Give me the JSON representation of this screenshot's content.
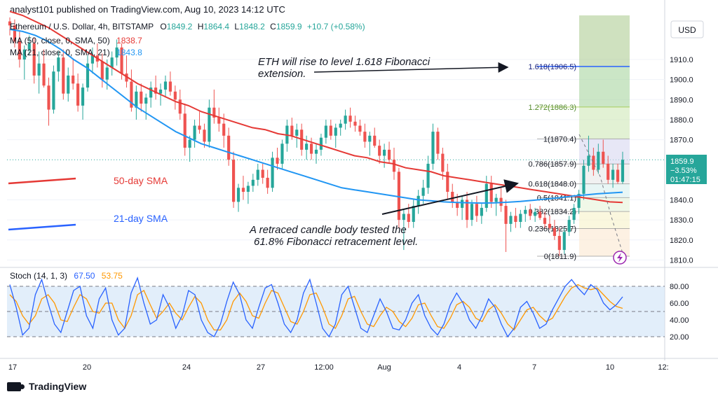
{
  "byline": "analyst101 published on TradingView.com, Aug 10, 2023 14:12 UTC",
  "brand": "TradingView",
  "colors": {
    "up": "#26a69a",
    "down": "#ef5350",
    "ma50": "#e53935",
    "ma21": "#2196f3",
    "stoch_k": "#2962ff",
    "stoch_d": "#ff9800",
    "stoch_band": "#cfe2f7",
    "fib_line": "#2962ff",
    "fib_1272": "#9bc53d"
  },
  "legend": {
    "symbol": "Ethereum / U.S. Dollar, 4h, BITSTAMP",
    "o_label": "O",
    "o": "1849.2",
    "h_label": "H",
    "h": "1864.4",
    "l_label": "L",
    "l": "1848.2",
    "c_label": "C",
    "c": "1859.9",
    "change": "+10.7 (+0.58%)",
    "ma50_label": "MA (50, close, 0, SMA, 50)",
    "ma50_value": "1838.7",
    "ma21_label": "MA (21, close, 0, SMA, 21)",
    "ma21_value": "1843.8"
  },
  "currency_button": "USD",
  "price_tag": {
    "price": "1859.9",
    "change": "−3.53%",
    "countdown": "01:47:15"
  },
  "annotations": {
    "top": [
      "ETH will rise to level 1.618 Fibonacci",
      "extension."
    ],
    "bottom": [
      "A retraced candle body tested the",
      "61.8% Fibonacci retracement level."
    ],
    "sma50": "50-day SMA",
    "sma21": "21-day SMA"
  },
  "stoch": {
    "label": "Stoch (14, 1, 3)",
    "k": "67.50",
    "d": "53.75"
  },
  "chart_data": {
    "type": "candlestick",
    "y_range": [
      1807,
      1932
    ],
    "y_ticks": [
      "1910.0",
      "1900.0",
      "1890.0",
      "1880.0",
      "1870.0",
      "1840.0",
      "1830.0",
      "1820.0",
      "1810.0"
    ],
    "x_ticks": [
      "17",
      "20",
      "24",
      "27",
      "12:00",
      "Aug",
      "4",
      "7",
      "10",
      "12:"
    ],
    "fib_levels": [
      {
        "ratio": "1.618",
        "price": 1906.5,
        "label": "1.618(1906.5)"
      },
      {
        "ratio": "1.272",
        "price": 1886.3,
        "label": "1.272(1886.3)"
      },
      {
        "ratio": "1",
        "price": 1870.4,
        "label": "1(1870.4)"
      },
      {
        "ratio": "0.786",
        "price": 1857.9,
        "label": "0.786(1857.9)"
      },
      {
        "ratio": "0.618",
        "price": 1848.0,
        "label": "0.618(1848.0)"
      },
      {
        "ratio": "0.5",
        "price": 1841.1,
        "label": "0.5(1841.1)"
      },
      {
        "ratio": "0.382",
        "price": 1834.2,
        "label": "0.382(1834.2)"
      },
      {
        "ratio": "0.236",
        "price": 1825.7,
        "label": "0.236(1825.7)"
      },
      {
        "ratio": "0",
        "price": 1811.9,
        "label": "0(1811.9)"
      }
    ],
    "candles": [
      [
        1929,
        1931,
        1922,
        1927
      ],
      [
        1927,
        1930,
        1916,
        1919
      ],
      [
        1919,
        1924,
        1906,
        1910
      ],
      [
        1910,
        1917,
        1900,
        1915
      ],
      [
        1915,
        1922,
        1912,
        1918
      ],
      [
        1918,
        1921,
        1898,
        1902
      ],
      [
        1902,
        1914,
        1893,
        1908
      ],
      [
        1908,
        1915,
        1896,
        1897
      ],
      [
        1897,
        1901,
        1877,
        1885
      ],
      [
        1885,
        1907,
        1883,
        1904
      ],
      [
        1904,
        1914,
        1899,
        1911
      ],
      [
        1911,
        1915,
        1890,
        1893
      ],
      [
        1893,
        1906,
        1889,
        1902
      ],
      [
        1902,
        1910,
        1895,
        1898
      ],
      [
        1898,
        1903,
        1884,
        1887
      ],
      [
        1887,
        1898,
        1880,
        1896
      ],
      [
        1896,
        1912,
        1894,
        1908
      ],
      [
        1908,
        1916,
        1903,
        1912
      ],
      [
        1912,
        1918,
        1906,
        1909
      ],
      [
        1909,
        1913,
        1896,
        1900
      ],
      [
        1900,
        1910,
        1895,
        1906
      ],
      [
        1906,
        1914,
        1902,
        1911
      ],
      [
        1911,
        1920,
        1907,
        1916
      ],
      [
        1916,
        1918,
        1900,
        1903
      ],
      [
        1903,
        1912,
        1896,
        1899
      ],
      [
        1899,
        1905,
        1884,
        1886
      ],
      [
        1886,
        1897,
        1880,
        1894
      ],
      [
        1894,
        1898,
        1884,
        1888
      ],
      [
        1888,
        1893,
        1880,
        1891
      ],
      [
        1891,
        1899,
        1886,
        1896
      ],
      [
        1896,
        1902,
        1890,
        1893
      ],
      [
        1893,
        1898,
        1887,
        1895
      ],
      [
        1895,
        1902,
        1891,
        1899
      ],
      [
        1899,
        1904,
        1892,
        1894
      ],
      [
        1894,
        1897,
        1885,
        1890
      ],
      [
        1890,
        1895,
        1880,
        1883
      ],
      [
        1883,
        1888,
        1862,
        1866
      ],
      [
        1866,
        1872,
        1859,
        1870
      ],
      [
        1870,
        1880,
        1866,
        1877
      ],
      [
        1877,
        1884,
        1873,
        1875
      ],
      [
        1875,
        1878,
        1866,
        1869
      ],
      [
        1869,
        1890,
        1866,
        1886
      ],
      [
        1886,
        1895,
        1878,
        1881
      ],
      [
        1881,
        1886,
        1874,
        1878
      ],
      [
        1878,
        1883,
        1866,
        1872
      ],
      [
        1872,
        1876,
        1857,
        1860
      ],
      [
        1860,
        1864,
        1836,
        1839
      ],
      [
        1839,
        1848,
        1834,
        1846
      ],
      [
        1846,
        1852,
        1840,
        1844
      ],
      [
        1844,
        1849,
        1838,
        1847
      ],
      [
        1847,
        1853,
        1844,
        1850
      ],
      [
        1850,
        1858,
        1847,
        1855
      ],
      [
        1855,
        1858,
        1848,
        1851
      ],
      [
        1851,
        1855,
        1843,
        1846
      ],
      [
        1846,
        1864,
        1844,
        1861
      ],
      [
        1861,
        1866,
        1855,
        1858
      ],
      [
        1858,
        1870,
        1855,
        1868
      ],
      [
        1868,
        1880,
        1864,
        1877
      ],
      [
        1877,
        1881,
        1870,
        1872
      ],
      [
        1872,
        1878,
        1866,
        1875
      ],
      [
        1875,
        1878,
        1862,
        1865
      ],
      [
        1865,
        1872,
        1860,
        1868
      ],
      [
        1868,
        1871,
        1860,
        1863
      ],
      [
        1863,
        1868,
        1858,
        1865
      ],
      [
        1865,
        1873,
        1862,
        1871
      ],
      [
        1871,
        1880,
        1868,
        1877
      ],
      [
        1877,
        1880,
        1870,
        1872
      ],
      [
        1872,
        1878,
        1866,
        1876
      ],
      [
        1876,
        1880,
        1872,
        1878
      ],
      [
        1878,
        1885,
        1875,
        1882
      ],
      [
        1882,
        1886,
        1876,
        1879
      ],
      [
        1879,
        1882,
        1874,
        1877
      ],
      [
        1877,
        1880,
        1872,
        1874
      ],
      [
        1874,
        1878,
        1866,
        1869
      ],
      [
        1869,
        1874,
        1862,
        1872
      ],
      [
        1872,
        1876,
        1866,
        1867
      ],
      [
        1867,
        1870,
        1858,
        1862
      ],
      [
        1862,
        1868,
        1856,
        1865
      ],
      [
        1865,
        1869,
        1858,
        1860
      ],
      [
        1860,
        1866,
        1850,
        1854
      ],
      [
        1854,
        1856,
        1826,
        1830
      ],
      [
        1830,
        1835,
        1815,
        1833
      ],
      [
        1833,
        1838,
        1826,
        1829
      ],
      [
        1829,
        1840,
        1826,
        1837
      ],
      [
        1837,
        1845,
        1833,
        1842
      ],
      [
        1842,
        1850,
        1838,
        1846
      ],
      [
        1846,
        1862,
        1843,
        1858
      ],
      [
        1858,
        1878,
        1855,
        1874
      ],
      [
        1874,
        1876,
        1860,
        1863
      ],
      [
        1863,
        1866,
        1850,
        1854
      ],
      [
        1854,
        1858,
        1840,
        1844
      ],
      [
        1844,
        1848,
        1836,
        1839
      ],
      [
        1839,
        1843,
        1832,
        1836
      ],
      [
        1836,
        1842,
        1830,
        1840
      ],
      [
        1840,
        1844,
        1826,
        1830
      ],
      [
        1830,
        1840,
        1827,
        1838
      ],
      [
        1838,
        1842,
        1829,
        1832
      ],
      [
        1832,
        1838,
        1828,
        1836
      ],
      [
        1836,
        1852,
        1834,
        1848
      ],
      [
        1848,
        1852,
        1836,
        1839
      ],
      [
        1839,
        1843,
        1832,
        1841
      ],
      [
        1841,
        1846,
        1834,
        1837
      ],
      [
        1837,
        1840,
        1814,
        1828
      ],
      [
        1828,
        1834,
        1824,
        1832
      ],
      [
        1832,
        1836,
        1826,
        1829
      ],
      [
        1829,
        1835,
        1826,
        1833
      ],
      [
        1833,
        1837,
        1829,
        1835
      ],
      [
        1835,
        1838,
        1830,
        1832
      ],
      [
        1832,
        1836,
        1829,
        1834
      ],
      [
        1834,
        1837,
        1830,
        1831
      ],
      [
        1831,
        1834,
        1826,
        1828
      ],
      [
        1828,
        1832,
        1825,
        1826
      ],
      [
        1826,
        1830,
        1820,
        1822
      ],
      [
        1822,
        1826,
        1812,
        1815
      ],
      [
        1815,
        1826,
        1813,
        1824
      ],
      [
        1824,
        1832,
        1822,
        1830
      ],
      [
        1830,
        1838,
        1828,
        1836
      ],
      [
        1836,
        1845,
        1833,
        1843
      ],
      [
        1843,
        1860,
        1840,
        1857
      ],
      [
        1857,
        1872,
        1854,
        1862
      ],
      [
        1862,
        1866,
        1852,
        1855
      ],
      [
        1855,
        1868,
        1853,
        1864
      ],
      [
        1864,
        1870,
        1856,
        1858
      ],
      [
        1858,
        1862,
        1848,
        1850
      ],
      [
        1850,
        1858,
        1846,
        1855
      ],
      [
        1855,
        1858,
        1848,
        1849
      ],
      [
        1849,
        1864,
        1848,
        1860
      ]
    ],
    "ma50": [
      1934,
      1932,
      1929,
      1926,
      1922,
      1918,
      1914,
      1910,
      1906,
      1902,
      1898,
      1895,
      1892,
      1889,
      1887,
      1884,
      1882,
      1880,
      1878,
      1876,
      1875,
      1873,
      1872,
      1870,
      1868,
      1866,
      1864,
      1862,
      1861,
      1859,
      1858,
      1856,
      1855,
      1854,
      1852,
      1851,
      1850,
      1849,
      1848,
      1847,
      1846,
      1845,
      1844,
      1843,
      1842,
      1841,
      1840,
      1839,
      1838.7
    ],
    "ma21": [
      1925,
      1924,
      1922,
      1919,
      1915,
      1910,
      1906,
      1901,
      1896,
      1891,
      1886,
      1882,
      1878,
      1874,
      1871,
      1868,
      1866,
      1864,
      1862,
      1860,
      1858,
      1856,
      1854,
      1852,
      1850,
      1848,
      1846,
      1845,
      1844,
      1843,
      1842,
      1841,
      1840,
      1839.5,
      1839,
      1838.7,
      1838.5,
      1838.4,
      1838.5,
      1838.8,
      1839.2,
      1839.8,
      1840.4,
      1841,
      1841.8,
      1842.4,
      1843,
      1843.4,
      1843.8
    ],
    "stoch_k": [
      82,
      55,
      22,
      30,
      70,
      88,
      60,
      35,
      25,
      50,
      75,
      80,
      45,
      30,
      65,
      78,
      40,
      22,
      30,
      72,
      90,
      60,
      35,
      40,
      70,
      55,
      30,
      45,
      75,
      70,
      40,
      25,
      20,
      35,
      62,
      85,
      70,
      40,
      30,
      55,
      78,
      82,
      60,
      35,
      25,
      40,
      72,
      88,
      60,
      30,
      20,
      35,
      70,
      80,
      55,
      30,
      25,
      45,
      65,
      50,
      30,
      28,
      40,
      60,
      70,
      45,
      30,
      22,
      35,
      58,
      72,
      60,
      40,
      30,
      45,
      65,
      55,
      35,
      20,
      30,
      55,
      62,
      48,
      30,
      35,
      52,
      66,
      80,
      88,
      78,
      70,
      82,
      76,
      60,
      52,
      58,
      67.5
    ],
    "stoch_d": [
      70,
      62,
      45,
      35,
      45,
      65,
      70,
      60,
      40,
      38,
      55,
      70,
      65,
      50,
      48,
      60,
      60,
      40,
      30,
      45,
      70,
      75,
      58,
      42,
      50,
      60,
      48,
      40,
      55,
      68,
      60,
      40,
      28,
      28,
      40,
      62,
      72,
      62,
      45,
      42,
      60,
      75,
      72,
      55,
      38,
      35,
      50,
      70,
      72,
      55,
      35,
      30,
      45,
      65,
      68,
      50,
      35,
      32,
      45,
      55,
      50,
      38,
      32,
      42,
      58,
      60,
      45,
      32,
      30,
      42,
      58,
      62,
      55,
      42,
      38,
      52,
      58,
      48,
      35,
      28,
      40,
      52,
      55,
      45,
      38,
      42,
      55,
      68,
      78,
      82,
      78,
      76,
      78,
      70,
      62,
      56,
      53.75
    ],
    "stoch_ticks": [
      "80.00",
      "60.00",
      "40.00",
      "20.00"
    ]
  }
}
